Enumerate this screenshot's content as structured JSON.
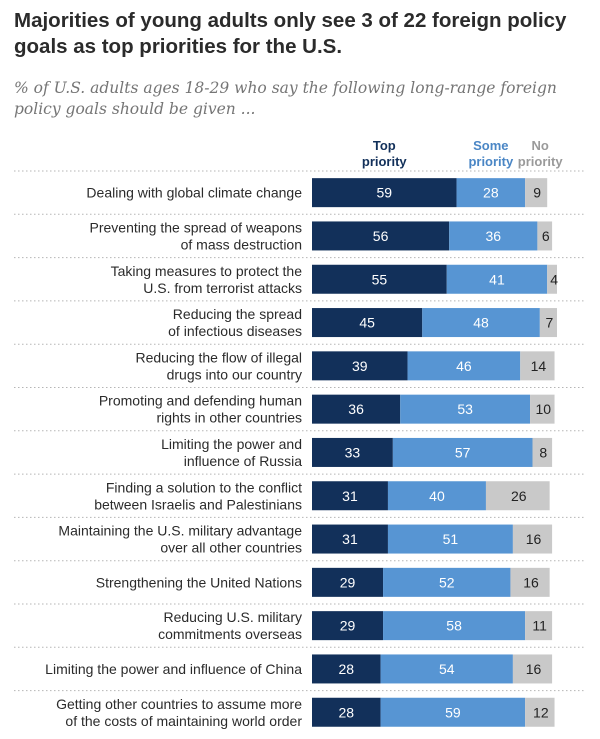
{
  "title": "Majorities of young adults only see 3 of 22 foreign policy goals as top priorities for the U.S.",
  "subtitle": "% of U.S. adults ages 18-29 who say the following long-range foreign policy goals should be given ...",
  "colors": {
    "top": "#12305a",
    "some": "#5795d3",
    "none": "#c9c9c9",
    "text": "#2b2b2b",
    "top_header": "#12305a",
    "some_header": "#4a86c5",
    "none_header": "#9a9a9a",
    "separator": "#b5b5b5"
  },
  "chart_data": {
    "type": "bar",
    "orientation": "horizontal",
    "stacked": true,
    "title": "Majorities of young adults only see 3 of 22 foreign policy goals as top priorities for the U.S.",
    "subtitle": "% of U.S. adults ages 18-29 who say the following long-range foreign policy goals should be given ...",
    "categories": [
      [
        "Dealing with global climate change"
      ],
      [
        "Preventing the spread of weapons",
        "of mass destruction"
      ],
      [
        "Taking measures to protect the",
        "U.S. from terrorist attacks"
      ],
      [
        "Reducing the spread",
        "of infectious diseases"
      ],
      [
        "Reducing the flow of illegal",
        "drugs into our country"
      ],
      [
        "Promoting and defending human",
        "rights in other countries"
      ],
      [
        "Limiting the power and",
        "influence of Russia"
      ],
      [
        "Finding a solution to the conflict",
        "between Israelis and Palestinians"
      ],
      [
        "Maintaining the U.S. military advantage",
        "over all other countries"
      ],
      [
        "Strengthening the United Nations"
      ],
      [
        "Reducing U.S. military",
        "commitments overseas"
      ],
      [
        "Limiting the power and influence of China"
      ],
      [
        "Getting other countries to assume more",
        "of the costs of maintaining world order"
      ]
    ],
    "series": [
      {
        "name": "Top priority",
        "header": [
          "Top",
          "priority"
        ],
        "values": [
          59,
          56,
          55,
          45,
          39,
          36,
          33,
          31,
          31,
          29,
          29,
          28,
          28
        ]
      },
      {
        "name": "Some priority",
        "header": [
          "Some",
          "priority"
        ],
        "values": [
          28,
          36,
          41,
          48,
          46,
          53,
          57,
          40,
          51,
          52,
          58,
          54,
          59
        ]
      },
      {
        "name": "No priority",
        "header": [
          "No",
          "priority"
        ],
        "values": [
          9,
          6,
          4,
          7,
          14,
          10,
          8,
          26,
          16,
          16,
          11,
          16,
          12
        ]
      }
    ],
    "xlim": [
      0,
      100
    ]
  }
}
